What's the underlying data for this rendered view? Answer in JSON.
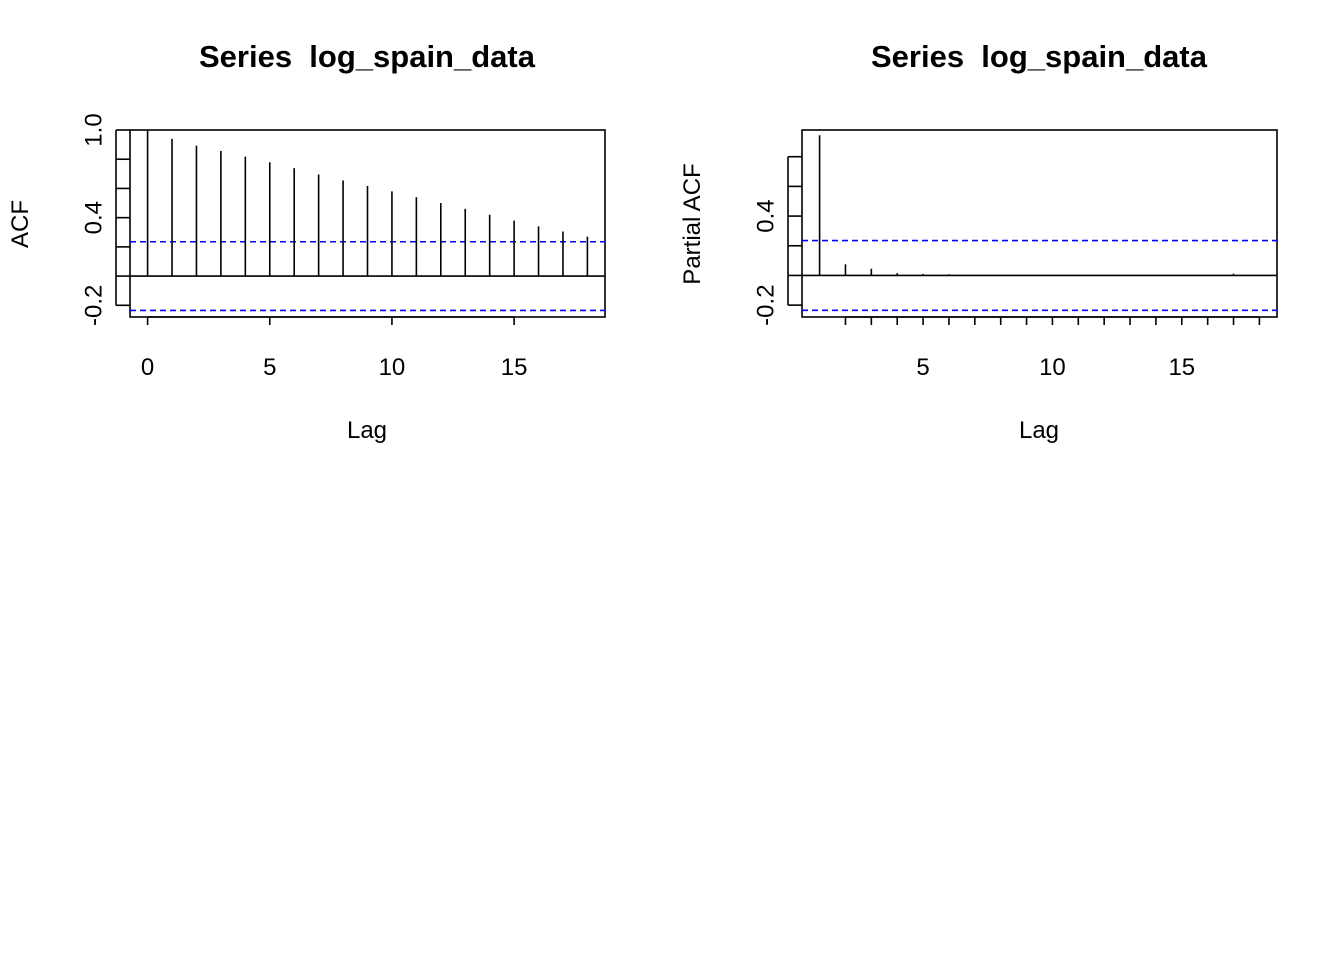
{
  "chart_data": [
    {
      "type": "bar",
      "title": "Series  log_spain_data",
      "xlabel": "Lag",
      "ylabel": "ACF",
      "xlim": [
        -0.72,
        18.72
      ],
      "ylim": [
        -0.28,
        1.0
      ],
      "x": [
        0,
        1,
        2,
        3,
        4,
        5,
        6,
        7,
        8,
        9,
        10,
        11,
        12,
        13,
        14,
        15,
        16,
        17,
        18
      ],
      "values": [
        1.0,
        0.939,
        0.893,
        0.857,
        0.818,
        0.779,
        0.739,
        0.695,
        0.655,
        0.617,
        0.58,
        0.54,
        0.5,
        0.46,
        0.42,
        0.38,
        0.34,
        0.305,
        0.27
      ],
      "confidence_bounds": [
        0.235,
        -0.235
      ],
      "confidence_color": "#0000ff",
      "x_ticks": [
        0,
        5,
        10,
        15
      ],
      "x_tick_labels": [
        "0",
        "5",
        "10",
        "15"
      ],
      "y_ticks": [
        -0.2,
        0.0,
        0.2,
        0.4,
        0.6,
        0.8,
        1.0
      ],
      "y_tick_labels": [
        "-0.2",
        "",
        "",
        "0.4",
        "",
        "",
        "1.0"
      ],
      "grid": false,
      "legend": "none"
    },
    {
      "type": "bar",
      "title": "Series  log_spain_data",
      "xlabel": "Lag",
      "ylabel": "Partial ACF",
      "xlim": [
        0.32,
        18.68
      ],
      "ylim": [
        -0.28,
        0.98
      ],
      "x": [
        1,
        2,
        3,
        4,
        5,
        6,
        7,
        8,
        9,
        10,
        11,
        12,
        13,
        14,
        15,
        16,
        17,
        18
      ],
      "values": [
        0.945,
        0.075,
        0.045,
        0.015,
        0.01,
        0.008,
        0.005,
        0.004,
        0.003,
        0.003,
        0.002,
        0.002,
        0.002,
        0.002,
        0.002,
        0.003,
        0.012,
        0.004
      ],
      "confidence_bounds": [
        0.235,
        -0.235
      ],
      "confidence_color": "#0000ff",
      "x_ticks": [
        2,
        3,
        4,
        5,
        6,
        7,
        8,
        9,
        10,
        11,
        12,
        13,
        14,
        15,
        16,
        17,
        18
      ],
      "x_tick_labels": [
        "",
        "",
        "",
        "5",
        "",
        "",
        "",
        "",
        "10",
        "",
        "",
        "",
        "",
        "15",
        "",
        "",
        ""
      ],
      "y_ticks": [
        -0.2,
        0.0,
        0.2,
        0.4,
        0.6,
        0.8
      ],
      "y_tick_labels": [
        "-0.2",
        "",
        "",
        "0.4",
        "",
        ""
      ],
      "grid": false,
      "legend": "none"
    }
  ]
}
